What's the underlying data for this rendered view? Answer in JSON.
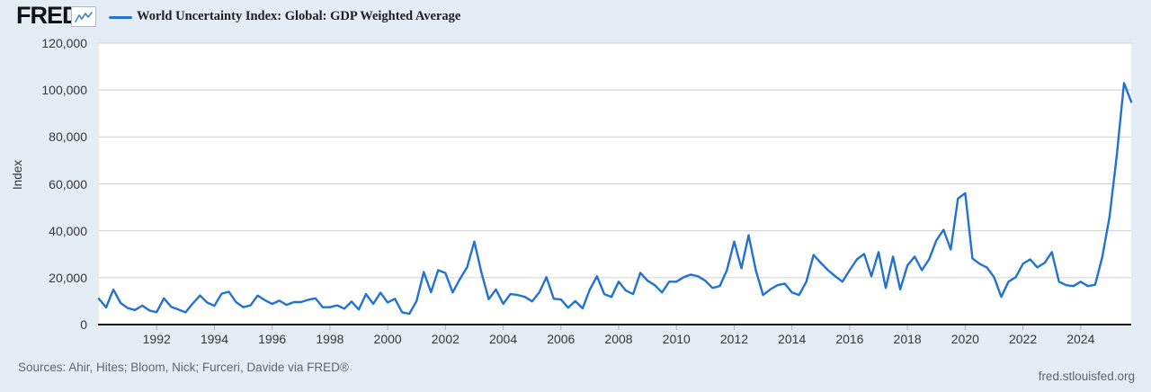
{
  "header": {
    "logo_text": "FRED",
    "reg_mark": "®",
    "legend_label": "World Uncertainty Index: Global: GDP Weighted Average"
  },
  "footer": {
    "sources": "Sources: Ahir, Hites; Bloom, Nick; Furceri, Davide via FRED®",
    "site_url": "fred.stlouisfed.org"
  },
  "colors": {
    "background": "#e4ecf5",
    "plot_background": "#ffffff",
    "line": "#2172d2",
    "grid": "#cfd0d2",
    "axis": "#1a1a1a",
    "tick_text": "#33383d",
    "muted_text": "#5d6771"
  },
  "chart_data": {
    "type": "line",
    "title": "World Uncertainty Index: Global: GDP Weighted Average",
    "ylabel": "Index",
    "xlabel": "",
    "legend_position": "top",
    "grid": true,
    "frequency": "quarterly",
    "x_domain": [
      1990.0,
      2025.75
    ],
    "x_step": 0.25,
    "ylim": [
      0,
      120000
    ],
    "y_ticks": [
      "0",
      "20,000",
      "40,000",
      "60,000",
      "80,000",
      "100,000",
      "120,000"
    ],
    "x_ticks": [
      1992,
      1994,
      1996,
      1998,
      2000,
      2002,
      2004,
      2006,
      2008,
      2010,
      2012,
      2014,
      2016,
      2018,
      2020,
      2022,
      2024
    ],
    "line_color": "#2172d2",
    "values": [
      11000,
      7300,
      14900,
      9200,
      7000,
      6200,
      8100,
      6000,
      5300,
      11200,
      7600,
      6400,
      5200,
      9000,
      12400,
      9400,
      8000,
      13200,
      14000,
      9600,
      7400,
      8200,
      12400,
      10400,
      8800,
      10200,
      8400,
      9600,
      9600,
      10600,
      11200,
      7400,
      7400,
      8200,
      6800,
      9800,
      6400,
      13000,
      8800,
      13600,
      9400,
      11000,
      5200,
      4600,
      10000,
      22400,
      13800,
      23200,
      22000,
      13700,
      19400,
      24400,
      35400,
      22000,
      10800,
      15000,
      8800,
      13000,
      12600,
      11800,
      9900,
      13700,
      20200,
      11000,
      10700,
      7200,
      10000,
      6900,
      14900,
      20600,
      13000,
      11800,
      18300,
      14500,
      13000,
      22100,
      18700,
      16800,
      13700,
      18300,
      18300,
      20200,
      21300,
      20600,
      18700,
      15600,
      16400,
      23200,
      35400,
      24000,
      38100,
      23200,
      12600,
      15000,
      16800,
      17500,
      13700,
      12600,
      18300,
      29700,
      26300,
      23200,
      20600,
      18300,
      23200,
      27800,
      30100,
      20600,
      30900,
      15600,
      29000,
      15000,
      25200,
      29000,
      23200,
      27800,
      35800,
      40400,
      32000,
      53700,
      56000,
      28200,
      25900,
      24400,
      20200,
      11800,
      18300,
      20200,
      25900,
      27800,
      24400,
      26300,
      30900,
      18300,
      16800,
      16400,
      18300,
      16400,
      17000,
      29000,
      46000,
      72000,
      103000,
      95000
    ]
  }
}
